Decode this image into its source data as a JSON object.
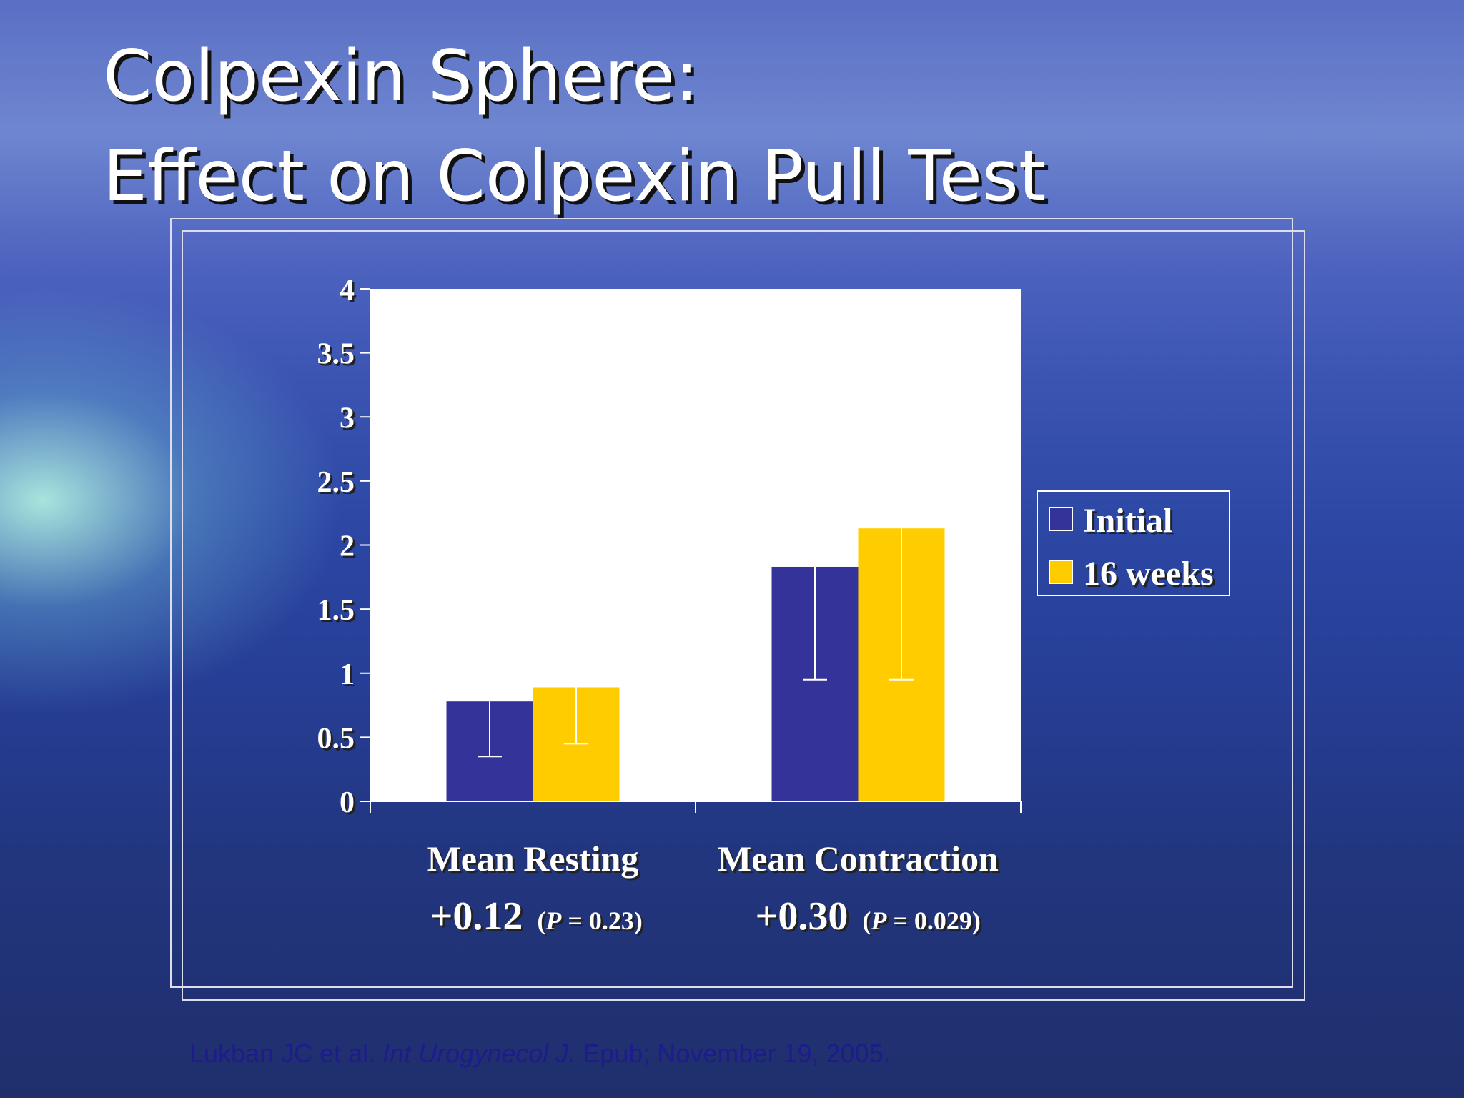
{
  "chart_data": {
    "type": "bar",
    "title": [
      "Colpexin Sphere:",
      "Effect on Colpexin Pull Test"
    ],
    "categories": [
      "Mean Resting",
      "Mean Contraction"
    ],
    "series": [
      {
        "name": "Initial",
        "color": "#333399",
        "values": [
          0.78,
          1.83
        ],
        "errors": [
          0.43,
          0.88
        ]
      },
      {
        "name": "16 weeks",
        "color": "#ffcc00",
        "values": [
          0.89,
          2.13
        ],
        "errors": [
          0.44,
          1.18
        ]
      }
    ],
    "annotations": [
      {
        "change": "+0.12",
        "stat_parts": [
          "(",
          "P",
          " = 0.23)"
        ]
      },
      {
        "change": "+0.30",
        "stat_parts": [
          "(",
          "P",
          " = 0.029)"
        ]
      }
    ],
    "ylim": [
      0,
      4
    ],
    "yticks": [
      0,
      0.5,
      1,
      1.5,
      2,
      2.5,
      3,
      3.5,
      4
    ],
    "legend": "right",
    "citation": [
      "Lukban JC et al. ",
      "Int Urogynecol J.",
      " Epub; November 19, 2005."
    ]
  }
}
